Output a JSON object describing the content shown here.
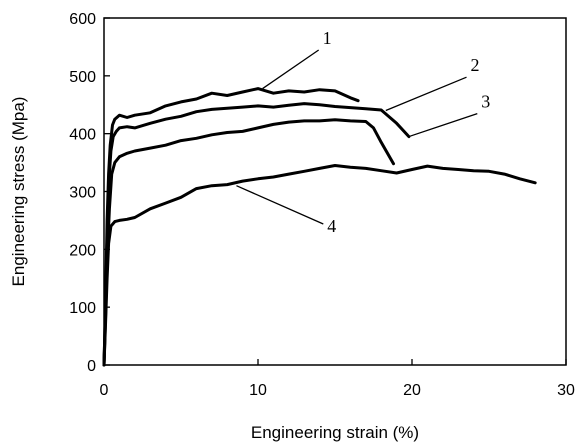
{
  "chart_data": {
    "type": "line",
    "xlabel": "Engineering strain (%)",
    "ylabel": "Engineering stress (Mpa)",
    "xlim": [
      0,
      30
    ],
    "ylim": [
      0,
      600
    ],
    "xticks": [
      0,
      10,
      20,
      30
    ],
    "yticks": [
      0,
      100,
      200,
      300,
      400,
      500,
      600
    ],
    "grid": false,
    "legend": "none",
    "series": [
      {
        "name": "1",
        "label_at": [
          14.2,
          555
        ],
        "leader_to": [
          10.3,
          478
        ],
        "points": [
          [
            0,
            0
          ],
          [
            0.1,
            100
          ],
          [
            0.2,
            250
          ],
          [
            0.3,
            330
          ],
          [
            0.4,
            380
          ],
          [
            0.55,
            415
          ],
          [
            0.7,
            425
          ],
          [
            1,
            432
          ],
          [
            1.5,
            428
          ],
          [
            2,
            432
          ],
          [
            3,
            436
          ],
          [
            4,
            448
          ],
          [
            5,
            455
          ],
          [
            6,
            460
          ],
          [
            7,
            470
          ],
          [
            8,
            466
          ],
          [
            9,
            472
          ],
          [
            10,
            478
          ],
          [
            11,
            470
          ],
          [
            12,
            474
          ],
          [
            13,
            472
          ],
          [
            14,
            476
          ],
          [
            15,
            474
          ],
          [
            16,
            462
          ],
          [
            16.5,
            457
          ]
        ]
      },
      {
        "name": "2",
        "label_at": [
          23.8,
          508
        ],
        "leader_to": [
          18.3,
          440
        ],
        "points": [
          [
            0,
            0
          ],
          [
            0.1,
            100
          ],
          [
            0.2,
            220
          ],
          [
            0.3,
            310
          ],
          [
            0.45,
            370
          ],
          [
            0.6,
            395
          ],
          [
            0.8,
            404
          ],
          [
            1,
            410
          ],
          [
            1.5,
            412
          ],
          [
            2,
            410
          ],
          [
            3,
            418
          ],
          [
            4,
            425
          ],
          [
            5,
            430
          ],
          [
            6,
            438
          ],
          [
            7,
            442
          ],
          [
            8,
            444
          ],
          [
            9,
            446
          ],
          [
            10,
            448
          ],
          [
            11,
            446
          ],
          [
            12,
            449
          ],
          [
            13,
            452
          ],
          [
            14,
            450
          ],
          [
            15,
            447
          ],
          [
            16,
            445
          ],
          [
            17,
            443
          ],
          [
            18,
            441
          ],
          [
            19,
            418
          ],
          [
            19.8,
            395
          ]
        ]
      },
      {
        "name": "3",
        "label_at": [
          24.5,
          445
        ],
        "leader_to": [
          19.8,
          395
        ],
        "points": [
          [
            0,
            0
          ],
          [
            0.1,
            80
          ],
          [
            0.2,
            180
          ],
          [
            0.35,
            270
          ],
          [
            0.5,
            330
          ],
          [
            0.7,
            350
          ],
          [
            1,
            360
          ],
          [
            1.5,
            366
          ],
          [
            2,
            370
          ],
          [
            3,
            375
          ],
          [
            4,
            380
          ],
          [
            5,
            388
          ],
          [
            6,
            392
          ],
          [
            7,
            398
          ],
          [
            8,
            402
          ],
          [
            9,
            404
          ],
          [
            10,
            410
          ],
          [
            11,
            416
          ],
          [
            12,
            420
          ],
          [
            13,
            422
          ],
          [
            14,
            422
          ],
          [
            15,
            424
          ],
          [
            16,
            422
          ],
          [
            17,
            421
          ],
          [
            17.5,
            410
          ],
          [
            18,
            385
          ],
          [
            18.8,
            348
          ]
        ]
      },
      {
        "name": "4",
        "label_at": [
          14.5,
          230
        ],
        "leader_to": [
          8.6,
          310
        ],
        "points": [
          [
            0,
            0
          ],
          [
            0.1,
            70
          ],
          [
            0.2,
            150
          ],
          [
            0.3,
            210
          ],
          [
            0.45,
            240
          ],
          [
            0.7,
            248
          ],
          [
            1,
            250
          ],
          [
            1.5,
            252
          ],
          [
            2,
            255
          ],
          [
            3,
            270
          ],
          [
            4,
            280
          ],
          [
            5,
            290
          ],
          [
            6,
            305
          ],
          [
            7,
            310
          ],
          [
            8,
            312
          ],
          [
            9,
            318
          ],
          [
            10,
            322
          ],
          [
            11,
            325
          ],
          [
            12,
            330
          ],
          [
            13,
            335
          ],
          [
            14,
            340
          ],
          [
            15,
            345
          ],
          [
            16,
            342
          ],
          [
            17,
            340
          ],
          [
            18,
            336
          ],
          [
            19,
            332
          ],
          [
            20,
            338
          ],
          [
            21,
            344
          ],
          [
            22,
            340
          ],
          [
            23,
            338
          ],
          [
            24,
            336
          ],
          [
            25,
            335
          ],
          [
            26,
            330
          ],
          [
            27,
            322
          ],
          [
            28,
            315
          ]
        ]
      }
    ]
  }
}
